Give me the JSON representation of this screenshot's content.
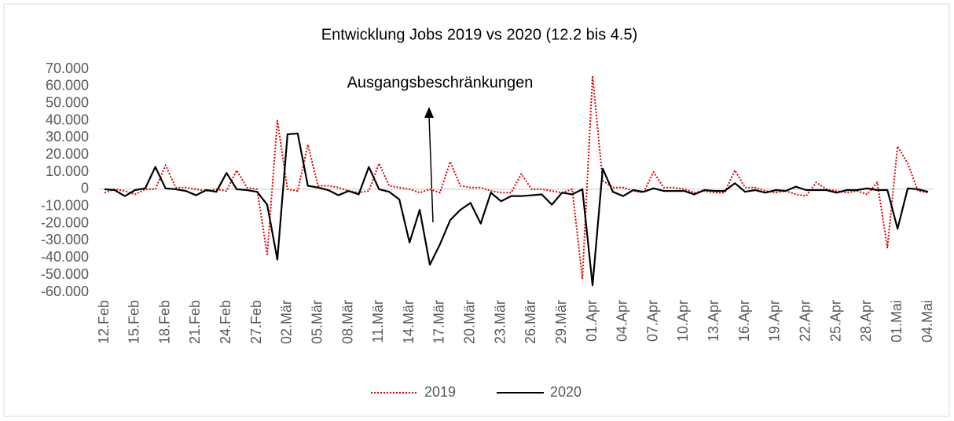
{
  "chart_data": {
    "type": "line",
    "title": "Entwicklung Jobs 2019 vs 2020 (12.2 bis 4.5)",
    "annotation": "Ausgangsbeschränkungen",
    "legend": "bottom",
    "categories": [
      "12.Feb",
      null,
      null,
      "15.Feb",
      null,
      null,
      "18.Feb",
      null,
      null,
      "21.Feb",
      null,
      null,
      "24.Feb",
      null,
      null,
      "27.Feb",
      null,
      null,
      "02.Mär",
      null,
      null,
      "05.Mär",
      null,
      null,
      "08.Mär",
      null,
      null,
      "11.Mär",
      null,
      null,
      "14.Mär",
      null,
      null,
      "17.Mär",
      null,
      null,
      "20.Mär",
      null,
      null,
      "23.Mär",
      null,
      null,
      "26.Mär",
      null,
      null,
      "29.Mär",
      null,
      null,
      "01.Apr",
      null,
      null,
      "04.Apr",
      null,
      null,
      "07.Apr",
      null,
      null,
      "10.Apr",
      null,
      null,
      "13.Apr",
      null,
      null,
      "16.Apr",
      null,
      null,
      "19.Apr",
      null,
      null,
      "22.Apr",
      null,
      null,
      "25.Apr",
      null,
      null,
      "28.Apr",
      null,
      null,
      "01.Mai",
      null,
      null,
      "04.Mai"
    ],
    "series": [
      {
        "name": "2019",
        "color": "#e00000",
        "dash": "dotted",
        "values": [
          -2000,
          0,
          -1000,
          -3000,
          0,
          0,
          14000,
          1000,
          1000,
          0,
          -1000,
          0,
          -1000,
          11000,
          1000,
          0,
          -38000,
          40000,
          0,
          -1000,
          26000,
          2000,
          2000,
          1000,
          -1000,
          -2000,
          -1000,
          15000,
          2000,
          1000,
          0,
          -2000,
          0,
          -2000,
          16000,
          2000,
          1000,
          1000,
          -1000,
          -2000,
          -2000,
          9000,
          0,
          0,
          -1000,
          -2000,
          0,
          -52000,
          66000,
          5000,
          1000,
          1000,
          -1000,
          -2000,
          10000,
          1000,
          1000,
          0,
          -2000,
          -1000,
          -2000,
          -2000,
          11000,
          1000,
          1000,
          -1000,
          -2000,
          -1000,
          -3000,
          -4000,
          4000,
          0,
          -1000,
          -2000,
          -1000,
          -3000,
          4000,
          -34000,
          25000,
          15000,
          -1000,
          -2000
        ]
      },
      {
        "name": "2020",
        "color": "#000000",
        "dash": "solid",
        "values": [
          0,
          -500,
          -4000,
          -500,
          500,
          13000,
          500,
          0,
          -1000,
          -3500,
          -500,
          -1500,
          9500,
          0,
          -500,
          -1500,
          -9000,
          -41000,
          32000,
          32500,
          2000,
          1000,
          -500,
          -3500,
          -1000,
          -3000,
          13000,
          0,
          -1500,
          -6000,
          -31000,
          -12000,
          -44000,
          -32000,
          -18000,
          -12000,
          -8000,
          -20000,
          -2000,
          -7000,
          -4000,
          -4000,
          -3500,
          -3000,
          -9000,
          -2000,
          -3000,
          0,
          -56000,
          12000,
          -1500,
          -4000,
          -500,
          -1500,
          500,
          -1000,
          -1000,
          -1000,
          -3000,
          -500,
          -1000,
          -1000,
          3500,
          -1500,
          -500,
          -2000,
          -500,
          -1000,
          1500,
          -500,
          -500,
          -500,
          -2000,
          -500,
          -500,
          500,
          -500,
          -500,
          -23000,
          500,
          0,
          -1500
        ]
      }
    ],
    "ylim": [
      -60000,
      70000
    ],
    "yticks": [
      {
        "value": -60000,
        "label": "-60.000"
      },
      {
        "value": -50000,
        "label": "-50.000"
      },
      {
        "value": -40000,
        "label": "-40.000"
      },
      {
        "value": -30000,
        "label": "-30.000"
      },
      {
        "value": -20000,
        "label": "-20.000"
      },
      {
        "value": -10000,
        "label": "-10.000"
      },
      0,
      {
        "value": 10000,
        "label": "10.000"
      },
      {
        "value": 20000,
        "label": "20.000"
      },
      {
        "value": 30000,
        "label": "30.000"
      },
      {
        "value": 40000,
        "label": "40.000"
      },
      {
        "value": 50000,
        "label": "50.000"
      },
      {
        "value": 60000,
        "label": "60.000"
      },
      {
        "value": 70000,
        "label": "70.000"
      }
    ]
  }
}
